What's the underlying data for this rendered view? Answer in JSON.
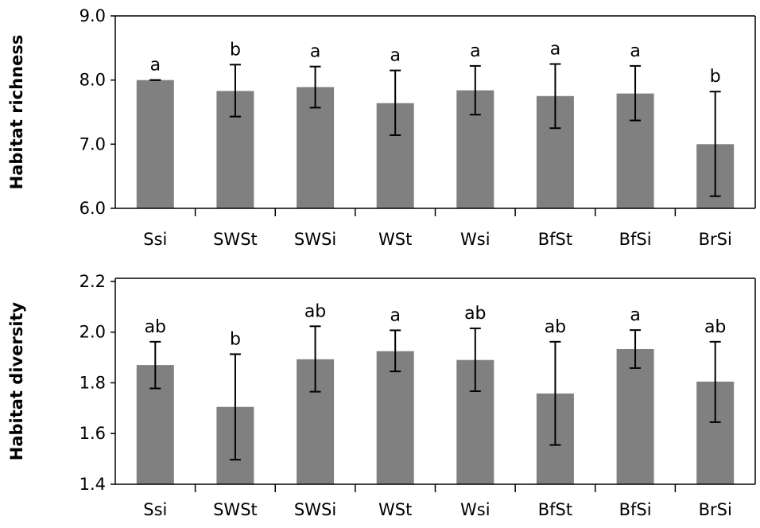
{
  "chart_data": [
    {
      "type": "bar",
      "title": "",
      "xlabel": "",
      "ylabel": "Habitat richness",
      "categories": [
        "Ssi",
        "SWSt",
        "SWSi",
        "WSt",
        "Wsi",
        "BfSt",
        "BfSi",
        "BrSi"
      ],
      "values": [
        8.0,
        7.83,
        7.89,
        7.64,
        7.84,
        7.75,
        7.79,
        7.0
      ],
      "error_high": [
        8.0,
        8.24,
        8.21,
        8.15,
        8.22,
        8.25,
        8.22,
        7.82
      ],
      "error_low": [
        8.0,
        7.43,
        7.57,
        7.14,
        7.46,
        7.25,
        7.37,
        6.19
      ],
      "significance_labels": [
        "a",
        "b",
        "a",
        "a",
        "a",
        "a",
        "a",
        "b"
      ],
      "ylim": [
        6.0,
        9.0
      ],
      "yticks": [
        "6.0",
        "7.0",
        "8.0",
        "9.0"
      ],
      "grid": false,
      "bar_color": "#808080"
    },
    {
      "type": "bar",
      "title": "",
      "xlabel": "",
      "ylabel": "Habitat diversity",
      "categories": [
        "Ssi",
        "SWSt",
        "SWSi",
        "WSt",
        "Wsi",
        "BfSt",
        "BfSi",
        "BrSi"
      ],
      "values": [
        1.87,
        1.705,
        1.893,
        1.925,
        1.89,
        1.758,
        1.933,
        1.805
      ],
      "error_high": [
        1.962,
        1.913,
        2.023,
        2.007,
        2.015,
        1.962,
        2.008,
        1.962
      ],
      "error_low": [
        1.778,
        1.497,
        1.765,
        1.845,
        1.767,
        1.555,
        1.858,
        1.645
      ],
      "significance_labels": [
        "ab",
        "b",
        "ab",
        "a",
        "ab",
        "ab",
        "a",
        "ab"
      ],
      "ylim": [
        1.4,
        2.3
      ],
      "yticks": [
        "1.4",
        "1.6",
        "1.8",
        "2.0",
        "2.2"
      ],
      "grid": false,
      "bar_color": "#808080"
    }
  ]
}
